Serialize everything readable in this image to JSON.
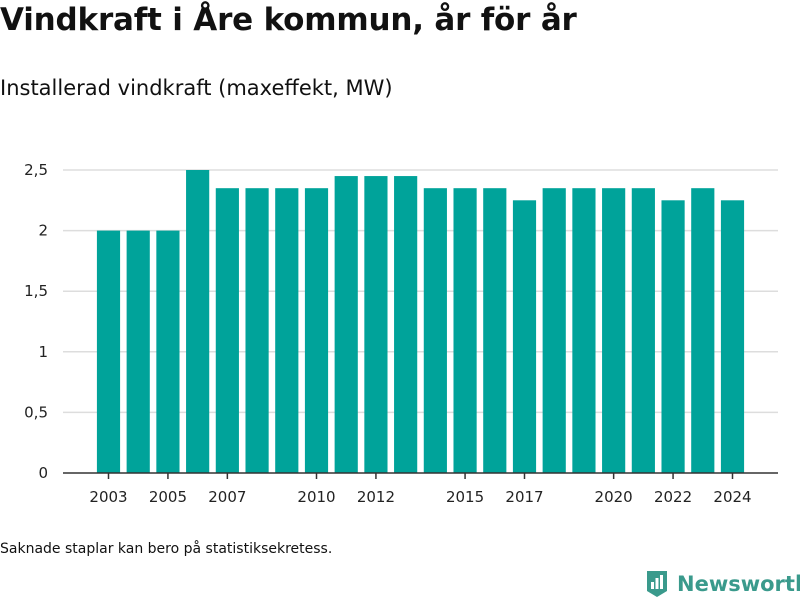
{
  "header": {
    "title": "Vindkraft i Åre kommun, år för år",
    "subtitle": "Installerad vindkraft (maxeffekt, MW)"
  },
  "footer": {
    "note": "Saknade staplar kan bero på statistiksekretess.",
    "brand": "Newsworthy"
  },
  "colors": {
    "bar": "#00a39a",
    "grid": "#dddddd",
    "axis": "#333333",
    "brand": "#3a9a8c"
  },
  "icons": {
    "logo": "bar-chart-badge-icon"
  },
  "chart_data": {
    "type": "bar",
    "categories": [
      2003,
      2004,
      2005,
      2006,
      2007,
      2008,
      2009,
      2010,
      2011,
      2012,
      2013,
      2014,
      2015,
      2016,
      2017,
      2018,
      2019,
      2020,
      2021,
      2022,
      2023,
      2024
    ],
    "values": [
      2,
      2,
      2,
      2.5,
      2.35,
      2.35,
      2.35,
      2.35,
      2.45,
      2.45,
      2.45,
      2.35,
      2.35,
      2.35,
      2.25,
      2.35,
      2.35,
      2.35,
      2.35,
      2.25,
      2.35,
      2.25
    ],
    "x_tick_labels": [
      "2003",
      "2005",
      "2007",
      "2010",
      "2012",
      "2015",
      "2017",
      "2020",
      "2022",
      "2024"
    ],
    "y_ticks": [
      0,
      0.5,
      1,
      1.5,
      2,
      2.5
    ],
    "y_tick_labels": [
      "0",
      "0,5",
      "1",
      "1,5",
      "2",
      "2,5"
    ],
    "ylim": [
      0,
      2.5
    ],
    "grid": true,
    "legend": "none"
  }
}
